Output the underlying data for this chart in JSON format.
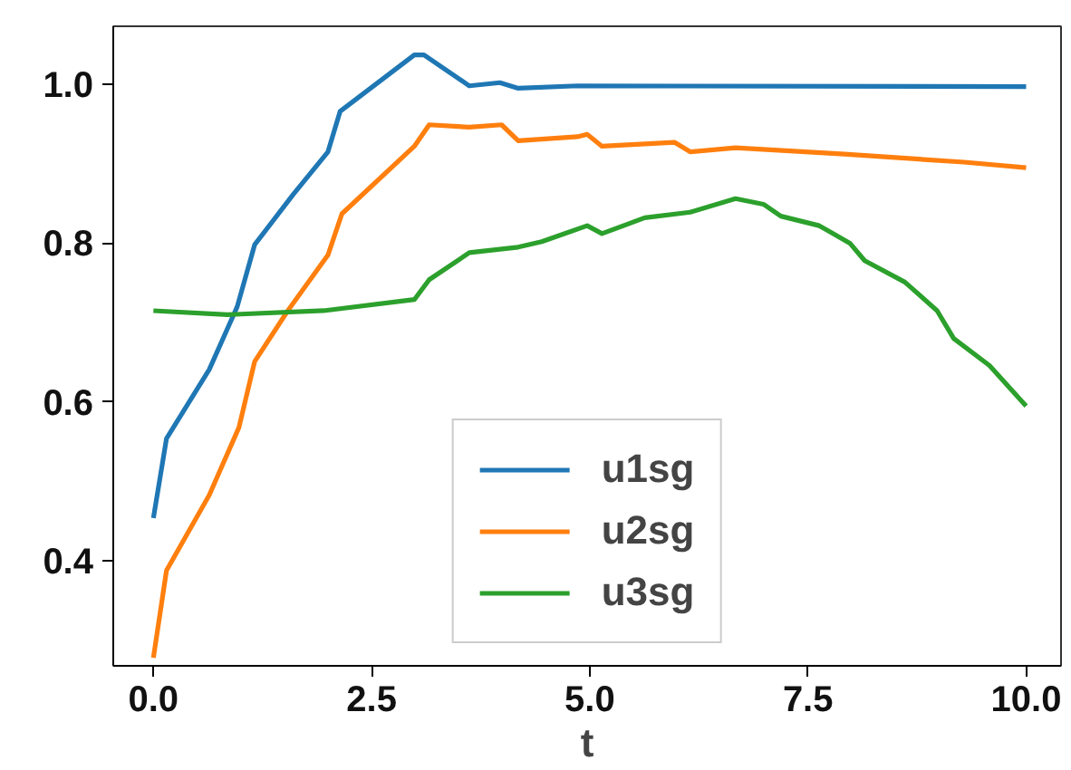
{
  "chart_data": {
    "type": "line",
    "xlabel": "t",
    "xlim": [
      -0.46,
      10.4
    ],
    "ylim": [
      0.268,
      1.073
    ],
    "xticks": [
      {
        "value": 0,
        "label": "0.0"
      },
      {
        "value": 2.5,
        "label": "2.5"
      },
      {
        "value": 5,
        "label": "5.0"
      },
      {
        "value": 7.5,
        "label": "7.5"
      },
      {
        "value": 10,
        "label": "10.0"
      }
    ],
    "yticks": [
      {
        "value": 0.4,
        "label": "0.4"
      },
      {
        "value": 0.6,
        "label": "0.6"
      },
      {
        "value": 0.8,
        "label": "0.8"
      },
      {
        "value": 1.0,
        "label": "1.0"
      }
    ],
    "grid": false,
    "legend": "bottom",
    "line_style": "solid",
    "marker": "none",
    "series": [
      {
        "name": "u1sg",
        "color": "#1f77b4",
        "x": [
          0,
          0.15,
          0.64,
          0.96,
          1.16,
          1.6,
          2.0,
          2.14,
          2.99,
          3.1,
          3.62,
          3.97,
          4.18,
          4.86,
          10.0
        ],
        "values": [
          0.454,
          0.554,
          0.641,
          0.72,
          0.798,
          0.861,
          0.915,
          0.966,
          1.037,
          1.037,
          0.998,
          1.002,
          0.995,
          0.998,
          0.997
        ]
      },
      {
        "name": "u2sg",
        "color": "#ff7f0e",
        "x": [
          0,
          0.15,
          0.64,
          0.98,
          1.16,
          1.54,
          2.0,
          2.16,
          2.99,
          3.16,
          3.62,
          3.99,
          4.18,
          4.86,
          4.97,
          5.14,
          5.97,
          6.15,
          6.67,
          7.92,
          9.29,
          10.0
        ],
        "values": [
          0.278,
          0.388,
          0.483,
          0.568,
          0.651,
          0.715,
          0.785,
          0.837,
          0.922,
          0.949,
          0.946,
          0.949,
          0.929,
          0.934,
          0.937,
          0.922,
          0.927,
          0.915,
          0.92,
          0.912,
          0.902,
          0.895
        ]
      },
      {
        "name": "u3sg",
        "color": "#2ca02c",
        "x": [
          0,
          0.85,
          1.95,
          2.99,
          3.16,
          3.62,
          4.18,
          4.45,
          4.97,
          5.14,
          5.63,
          6.15,
          6.67,
          6.99,
          7.19,
          7.63,
          7.98,
          8.15,
          8.61,
          8.98,
          9.17,
          9.58,
          10.0
        ],
        "values": [
          0.715,
          0.71,
          0.715,
          0.729,
          0.754,
          0.788,
          0.795,
          0.802,
          0.822,
          0.812,
          0.832,
          0.839,
          0.856,
          0.849,
          0.834,
          0.822,
          0.8,
          0.778,
          0.751,
          0.715,
          0.68,
          0.646,
          0.595
        ]
      }
    ]
  }
}
